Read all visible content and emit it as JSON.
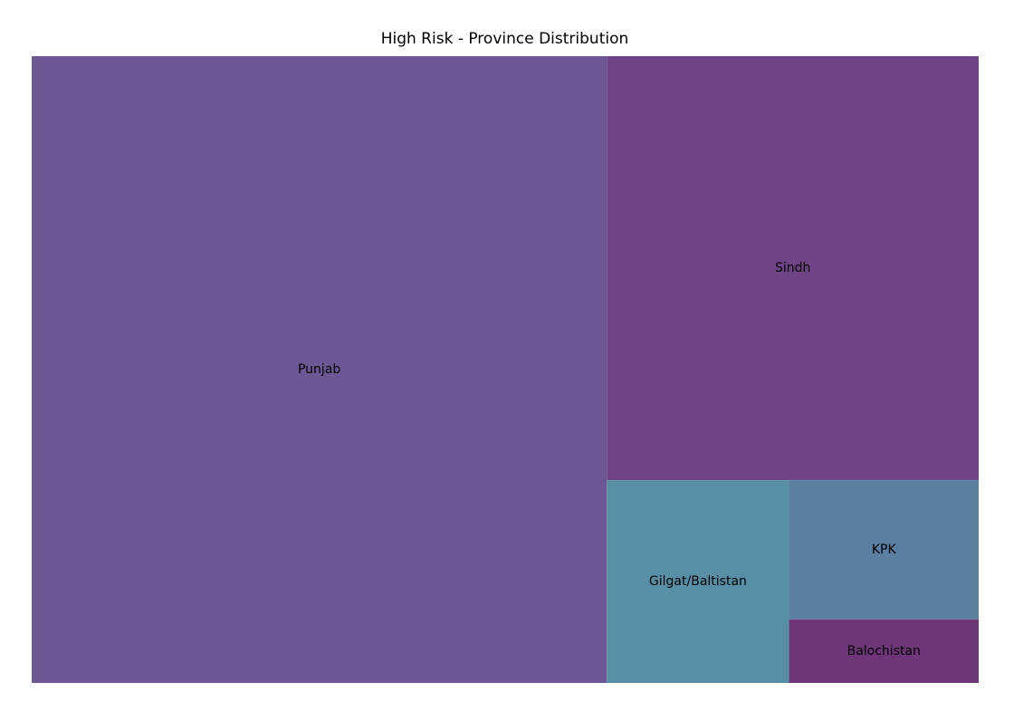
{
  "chart_data": {
    "type": "treemap",
    "title": "High Risk - Province Distribution",
    "categories": [
      "Punjab",
      "Sindh",
      "Gilgat/Baltistan",
      "KPK",
      "Balochistan"
    ],
    "values": [
      478,
      209,
      49,
      35,
      16
    ],
    "colors": [
      "#6c5894",
      "#6e4486",
      "#568fa6",
      "#5b7fa1",
      "#6e3579"
    ],
    "axes": "off",
    "grid": false,
    "legend": "none"
  }
}
